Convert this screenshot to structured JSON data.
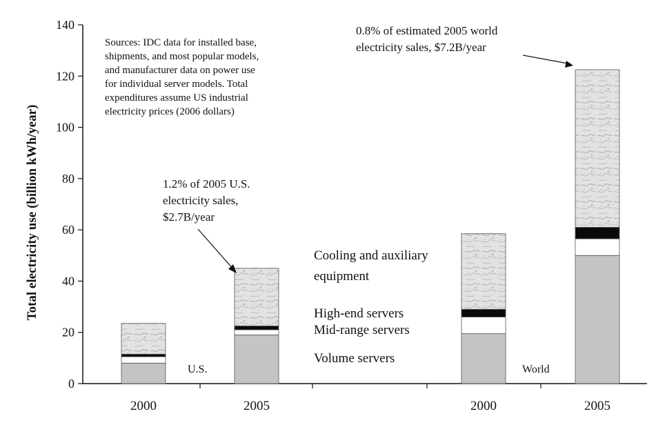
{
  "chart_data": {
    "type": "bar",
    "stacked": true,
    "ylabel": "Total electricity use (billion kWh/year)",
    "ylim": [
      0,
      140
    ],
    "yticks": [
      0,
      20,
      40,
      60,
      80,
      100,
      120,
      140
    ],
    "grid": false,
    "groups": [
      {
        "label": "U.S.",
        "categories": [
          "2000",
          "2005"
        ]
      },
      {
        "label": "World",
        "categories": [
          "2000",
          "2005"
        ]
      }
    ],
    "series": [
      {
        "name": "Volume servers",
        "values": [
          8,
          19,
          19.5,
          50
        ],
        "fill": "#c4c4c4"
      },
      {
        "name": "Mid-range servers",
        "values": [
          2.5,
          2,
          6.5,
          6.5
        ],
        "fill": "#ffffff"
      },
      {
        "name": "High-end servers",
        "values": [
          1,
          1.5,
          3,
          4.5
        ],
        "fill": "#0a0a0a"
      },
      {
        "name": "Cooling and auxiliary equipment",
        "values": [
          12,
          22.5,
          29.5,
          61.5
        ],
        "fill": "#e4e4e4"
      }
    ],
    "legend_lines": [
      "Cooling and auxiliary",
      "equipment",
      "High-end servers",
      "Mid-range servers",
      "Volume servers"
    ],
    "sources_note": [
      "Sources:  IDC data for installed base,",
      "shipments, and most popular models,",
      "and manufacturer data on power use",
      "for individual server models.  Total",
      "expenditures assume US industrial",
      "electricity prices (2006 dollars)"
    ],
    "annotations": [
      {
        "lines": [
          "1.2% of 2005 U.S.",
          "electricity sales,",
          "$2.7B/year"
        ],
        "points_to": "2005 U.S."
      },
      {
        "lines": [
          "0.8% of estimated 2005 world",
          "electricity sales, $7.2B/year"
        ],
        "points_to": "2005 World"
      }
    ]
  }
}
